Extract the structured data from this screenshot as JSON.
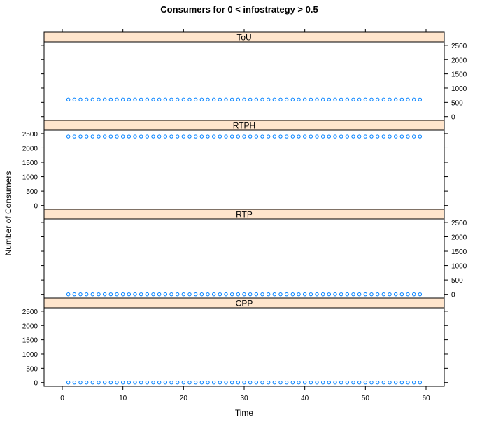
{
  "chart_data": {
    "type": "scatter",
    "title": "Consumers for 0 < infostrategy > 0.5",
    "xlabel": "Time",
    "ylabel": "Number of Consumers",
    "xlim": [
      -3,
      63
    ],
    "ylim": [
      -130,
      2620
    ],
    "x_ticks": [
      0,
      10,
      20,
      30,
      40,
      50,
      60
    ],
    "y_ticks": [
      0,
      500,
      1000,
      1500,
      2000,
      2500
    ],
    "point_color": "#0080ff",
    "strip_color": "#ffe5cc",
    "panels": [
      {
        "name": "ToU",
        "value": 600,
        "x_start": 1,
        "x_end": 59,
        "y_axis_side": "right"
      },
      {
        "name": "RTPH",
        "value": 2400,
        "x_start": 1,
        "x_end": 59,
        "y_axis_side": "left"
      },
      {
        "name": "RTP",
        "value": 0,
        "x_start": 1,
        "x_end": 59,
        "y_axis_side": "right"
      },
      {
        "name": "CPP",
        "value": 0,
        "x_start": 1,
        "x_end": 59,
        "y_axis_side": "left"
      }
    ]
  }
}
